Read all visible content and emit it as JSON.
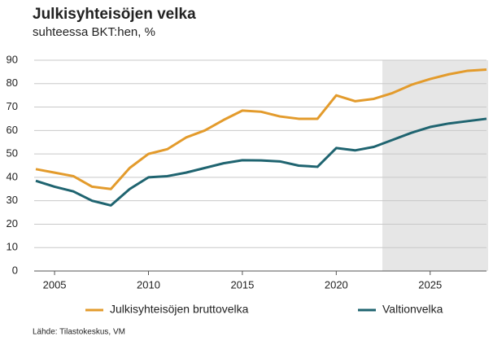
{
  "chart_data": {
    "type": "line",
    "title": "Julkisyhteisöjen velka",
    "subtitle": "suhteessa BKT:hen, %",
    "source": "Lähde: Tilastokeskus, VM",
    "x": [
      2004,
      2005,
      2006,
      2007,
      2008,
      2009,
      2010,
      2011,
      2012,
      2013,
      2014,
      2015,
      2016,
      2017,
      2018,
      2019,
      2020,
      2021,
      2022,
      2023,
      2024,
      2025,
      2026,
      2027,
      2028
    ],
    "series": [
      {
        "name": "Julkisyhteisöjen bruttovelka",
        "color": "#e39b2c",
        "values": [
          43.5,
          42,
          40.5,
          36,
          35,
          44,
          50,
          52,
          57,
          60,
          64.5,
          68.5,
          68,
          66,
          65,
          65,
          75,
          72.5,
          73.5,
          76,
          79.5,
          82,
          84,
          85.5,
          86
        ]
      },
      {
        "name": "Valtionvelka",
        "color": "#1f6470",
        "values": [
          38.5,
          36,
          34,
          30,
          28,
          35,
          40,
          40.5,
          42,
          44,
          46,
          47.3,
          47.2,
          46.8,
          45,
          44.5,
          52.5,
          51.5,
          53,
          56,
          59,
          61.5,
          63,
          64,
          65
        ]
      }
    ],
    "xlim": [
      2004,
      2028
    ],
    "xticks": [
      2005,
      2010,
      2015,
      2020,
      2025
    ],
    "ylim": [
      0,
      90
    ],
    "yticks": [
      0,
      10,
      20,
      30,
      40,
      50,
      60,
      70,
      80,
      90
    ],
    "grid": true
  }
}
